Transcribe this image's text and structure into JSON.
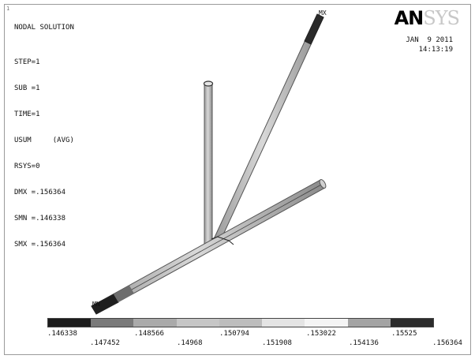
{
  "window_number": "1",
  "header": {
    "solution_type": "NODAL SOLUTION",
    "info_lines": [
      "STEP=1",
      "SUB =1",
      "TIME=1",
      "USUM     (AVG)",
      "RSYS=0",
      "DMX =.156364",
      "SMN =.146338",
      "SMX =.156364"
    ],
    "date": "JAN  9 2011",
    "time": "14:13:19"
  },
  "logo": {
    "prefix": "AN",
    "suffix": "SYS"
  },
  "markers": {
    "max": "MX",
    "min": "MN"
  },
  "legend": {
    "colors": [
      "#1c1c1c",
      "#7a7a7a",
      "#aaaaaa",
      "#c6c6c6",
      "#bdbdbd",
      "#e4e4e4",
      "#f4f4f4",
      "#a3a3a3",
      "#2c2c2c"
    ],
    "labels": [
      ".146338",
      ".147452",
      ".148566",
      ".14968",
      ".150794",
      ".151908",
      ".153022",
      ".154136",
      ".15525",
      ".156364"
    ]
  }
}
